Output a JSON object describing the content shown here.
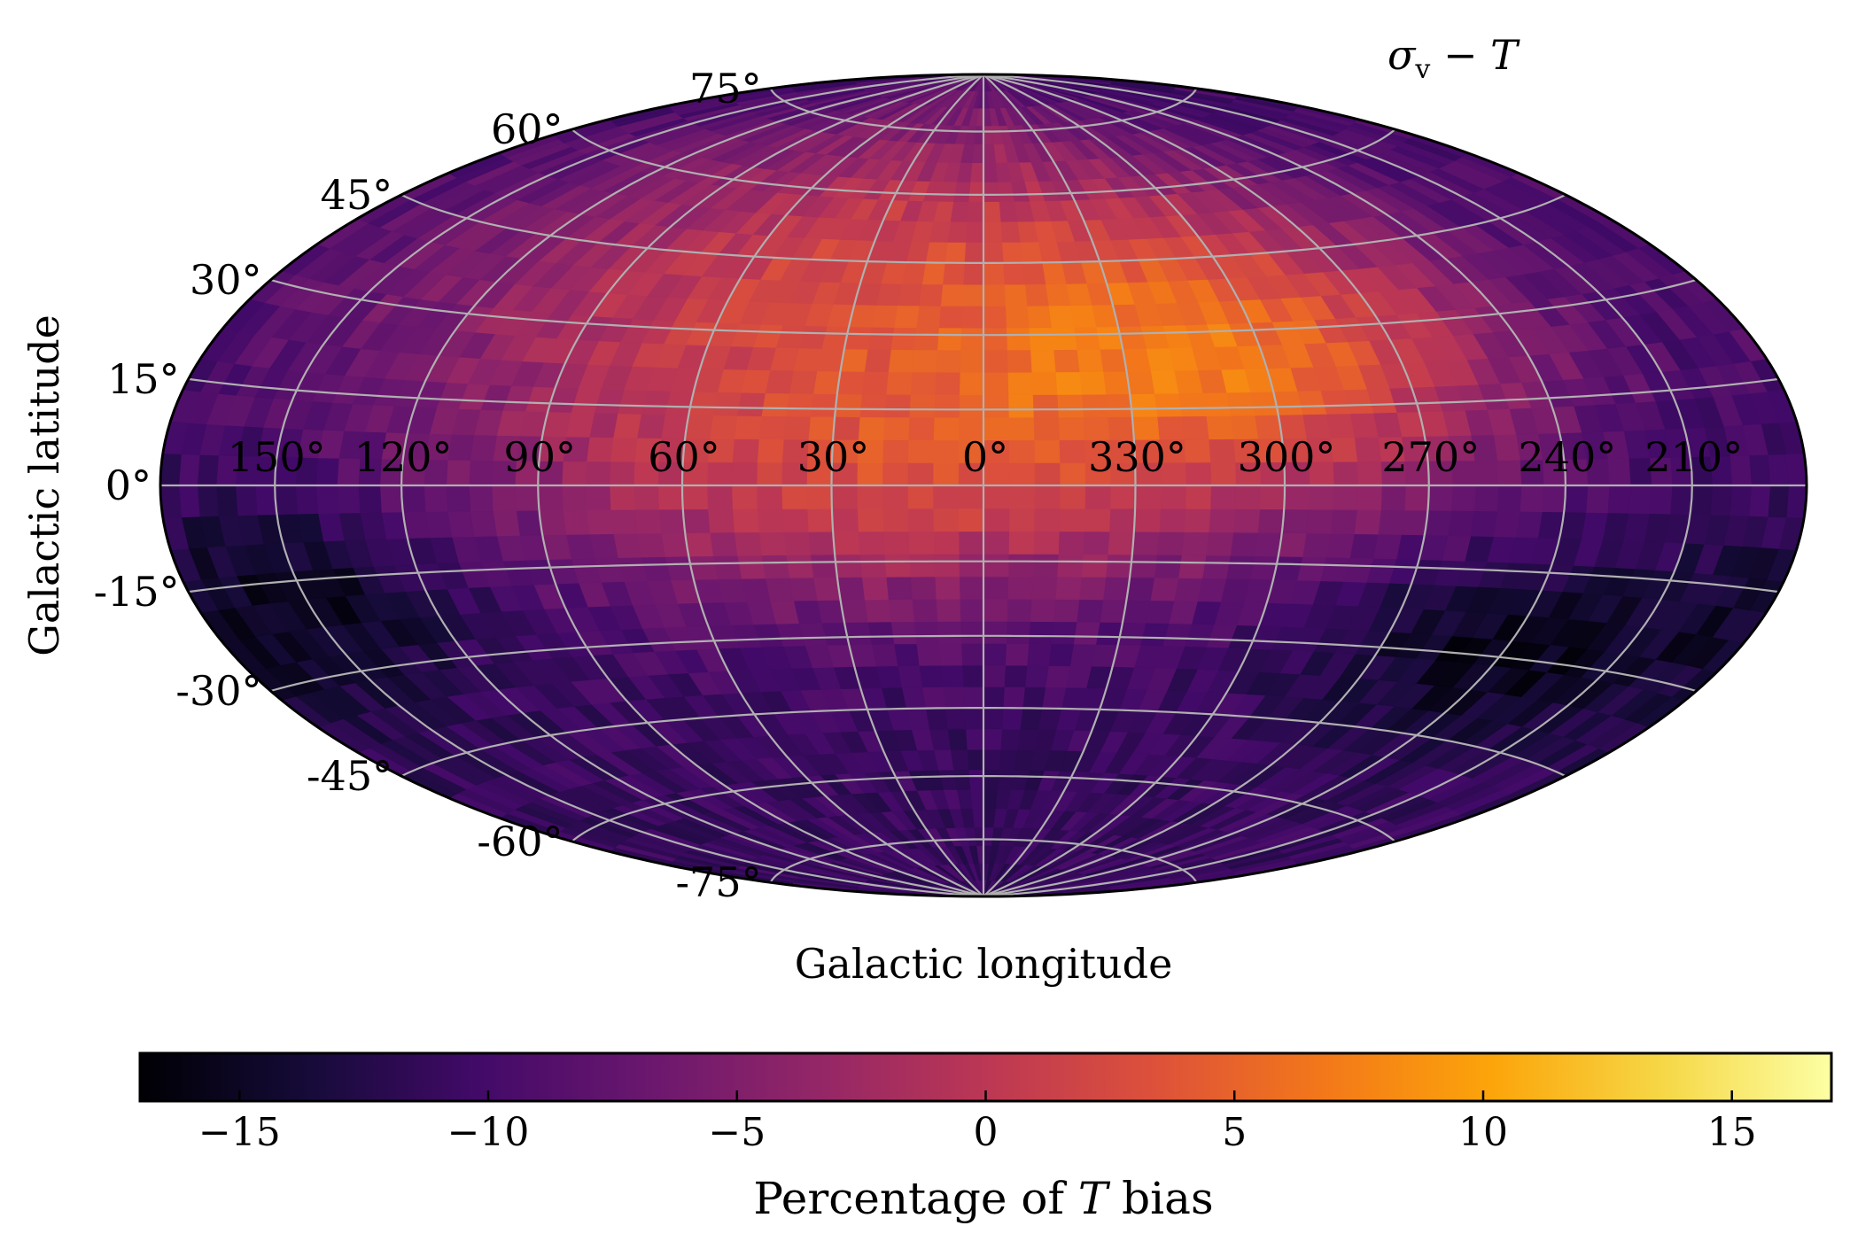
{
  "chart_data": {
    "type": "heatmap",
    "projection": "aitoff-hammer",
    "title": "σ",
    "title_sub": "v",
    "title_rest": " − T",
    "xlabel": "Galactic longitude",
    "ylabel": "Galactic latitude",
    "lon_ticks": [
      "150°",
      "120°",
      "90°",
      "60°",
      "30°",
      "0°",
      "330°",
      "300°",
      "270°",
      "240°",
      "210°"
    ],
    "lat_ticks": [
      "75°",
      "60°",
      "45°",
      "30°",
      "15°",
      "0°",
      "-15°",
      "-30°",
      "-45°",
      "-60°",
      "-75°"
    ],
    "lon_values": [
      150,
      120,
      90,
      60,
      30,
      0,
      -30,
      -60,
      -90,
      -120,
      -150
    ],
    "lat_values": [
      75,
      60,
      45,
      30,
      15,
      0,
      -15,
      -30,
      -45,
      -60,
      -75
    ],
    "grid": true,
    "grid_color": "#b0b0b0",
    "colormap": "inferno",
    "vmin": -17,
    "vmax": 17,
    "colorbar": {
      "label_prefix": "Percentage of ",
      "label_var": "T",
      "label_suffix": " bias",
      "ticks": [
        -15,
        -10,
        -5,
        0,
        5,
        10,
        15
      ],
      "tick_labels": [
        "−15",
        "−10",
        "−5",
        "0",
        "5",
        "10",
        "15"
      ],
      "orientation": "horizontal"
    },
    "value_field": {
      "description_base": -11,
      "features": [
        {
          "kind": "blob",
          "lon": 20,
          "lat": 40,
          "amp": 13,
          "slon": 85,
          "slat": 30
        },
        {
          "kind": "blob",
          "lon": -60,
          "lat": 25,
          "amp": 9,
          "slon": 40,
          "slat": 18
        },
        {
          "kind": "blob",
          "lon": 15,
          "lat": -2,
          "amp": 8,
          "slon": 55,
          "slat": 18
        },
        {
          "kind": "blob",
          "lon": 150,
          "lat": -18,
          "amp": -5,
          "slon": 30,
          "slat": 12
        },
        {
          "kind": "blob",
          "lon": -120,
          "lat": -28,
          "amp": -5,
          "slon": 35,
          "slat": 12
        }
      ]
    }
  }
}
